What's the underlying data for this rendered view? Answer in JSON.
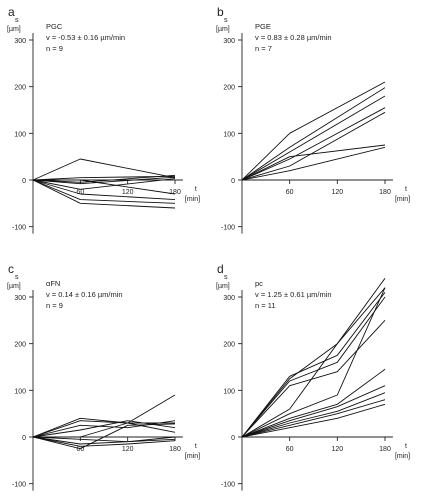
{
  "chart_data": [
    {
      "panel": "a",
      "type": "line",
      "info_lines": [
        "PGC",
        "v = -0.53 ± 0.16 µm/min",
        "n = 9"
      ],
      "ylabel": [
        "s",
        "[µm]"
      ],
      "xlabel": [
        "t",
        "[min]"
      ],
      "xlim": [
        0,
        190
      ],
      "ylim": [
        -115,
        315
      ],
      "xticks": [
        60,
        120,
        180
      ],
      "yticks": [
        -100,
        0,
        100,
        200,
        300
      ],
      "series": [
        {
          "x": [
            0,
            60,
            180
          ],
          "y": [
            0,
            45,
            5
          ]
        },
        {
          "x": [
            0,
            60,
            180
          ],
          "y": [
            0,
            5,
            8
          ]
        },
        {
          "x": [
            0,
            60,
            180
          ],
          "y": [
            0,
            -5,
            10
          ]
        },
        {
          "x": [
            0,
            60,
            180
          ],
          "y": [
            0,
            -8,
            6
          ]
        },
        {
          "x": [
            0,
            60,
            180
          ],
          "y": [
            0,
            -20,
            3
          ]
        },
        {
          "x": [
            0,
            60,
            180
          ],
          "y": [
            0,
            -30,
            -42
          ]
        },
        {
          "x": [
            0,
            60,
            180
          ],
          "y": [
            0,
            -42,
            -50
          ]
        },
        {
          "x": [
            0,
            60,
            180
          ],
          "y": [
            0,
            -50,
            -60
          ]
        },
        {
          "x": [
            0,
            60,
            180
          ],
          "y": [
            0,
            0,
            -30
          ]
        }
      ]
    },
    {
      "panel": "b",
      "type": "line",
      "info_lines": [
        "PGE",
        "v = 0.83 ± 0.28 µm/min",
        "n = 7"
      ],
      "ylabel": [
        "s",
        "[µm]"
      ],
      "xlabel": [
        "t",
        "[min]"
      ],
      "xlim": [
        0,
        190
      ],
      "ylim": [
        -115,
        315
      ],
      "xticks": [
        60,
        120,
        180
      ],
      "yticks": [
        -100,
        0,
        100,
        200,
        300
      ],
      "series": [
        {
          "x": [
            0,
            60,
            180
          ],
          "y": [
            0,
            100,
            210
          ]
        },
        {
          "x": [
            0,
            60,
            180
          ],
          "y": [
            0,
            70,
            198
          ]
        },
        {
          "x": [
            0,
            60,
            180
          ],
          "y": [
            0,
            60,
            180
          ]
        },
        {
          "x": [
            0,
            60,
            180
          ],
          "y": [
            0,
            45,
            155
          ]
        },
        {
          "x": [
            0,
            60,
            180
          ],
          "y": [
            0,
            30,
            145
          ]
        },
        {
          "x": [
            0,
            60,
            180
          ],
          "y": [
            0,
            50,
            75
          ]
        },
        {
          "x": [
            0,
            60,
            180
          ],
          "y": [
            0,
            20,
            70
          ]
        }
      ]
    },
    {
      "panel": "c",
      "type": "line",
      "info_lines": [
        "αFN",
        "v = 0.14 ± 0.16 µm/min",
        "n = 9"
      ],
      "ylabel": [
        "s",
        "[µm]"
      ],
      "xlabel": [
        "t",
        "[min]"
      ],
      "xlim": [
        0,
        190
      ],
      "ylim": [
        -115,
        315
      ],
      "xticks": [
        60,
        120,
        180
      ],
      "yticks": [
        -100,
        0,
        100,
        200,
        300
      ],
      "series": [
        {
          "x": [
            0,
            60,
            120,
            180
          ],
          "y": [
            0,
            40,
            30,
            30
          ]
        },
        {
          "x": [
            0,
            60,
            120,
            180
          ],
          "y": [
            0,
            35,
            30,
            90
          ]
        },
        {
          "x": [
            0,
            60,
            120,
            180
          ],
          "y": [
            0,
            25,
            20,
            35
          ]
        },
        {
          "x": [
            0,
            60,
            120,
            180
          ],
          "y": [
            0,
            15,
            35,
            20
          ]
        },
        {
          "x": [
            0,
            60,
            120,
            180
          ],
          "y": [
            0,
            0,
            30,
            10
          ]
        },
        {
          "x": [
            0,
            60,
            120,
            180
          ],
          "y": [
            0,
            -5,
            -10,
            0
          ]
        },
        {
          "x": [
            0,
            60,
            120,
            180
          ],
          "y": [
            0,
            -15,
            -10,
            -5
          ]
        },
        {
          "x": [
            0,
            60,
            120,
            180
          ],
          "y": [
            0,
            -20,
            -15,
            -8
          ]
        },
        {
          "x": [
            0,
            60,
            120,
            180
          ],
          "y": [
            0,
            -25,
            25,
            28
          ]
        }
      ]
    },
    {
      "panel": "d",
      "type": "line",
      "info_lines": [
        "pc",
        "v = 1.25 ± 0.61 µm/min",
        "n = 11"
      ],
      "ylabel": [
        "s",
        "[µm]"
      ],
      "xlabel": [
        "t",
        "[min]"
      ],
      "xlim": [
        0,
        190
      ],
      "ylim": [
        -115,
        315
      ],
      "xticks": [
        60,
        120,
        180
      ],
      "yticks": [
        -100,
        0,
        100,
        200,
        300
      ],
      "series": [
        {
          "x": [
            0,
            60,
            120,
            180
          ],
          "y": [
            0,
            125,
            200,
            320
          ]
        },
        {
          "x": [
            0,
            60,
            120,
            180
          ],
          "y": [
            0,
            130,
            175,
            310
          ]
        },
        {
          "x": [
            0,
            60,
            120,
            180
          ],
          "y": [
            0,
            120,
            160,
            300
          ]
        },
        {
          "x": [
            0,
            60,
            120,
            180
          ],
          "y": [
            0,
            110,
            140,
            250
          ]
        },
        {
          "x": [
            0,
            60,
            120,
            180
          ],
          "y": [
            0,
            60,
            200,
            340
          ]
        },
        {
          "x": [
            0,
            60,
            120,
            180
          ],
          "y": [
            0,
            50,
            90,
            320
          ]
        },
        {
          "x": [
            0,
            60,
            120,
            180
          ],
          "y": [
            0,
            40,
            70,
            145
          ]
        },
        {
          "x": [
            0,
            60,
            120,
            180
          ],
          "y": [
            0,
            35,
            65,
            110
          ]
        },
        {
          "x": [
            0,
            60,
            120,
            180
          ],
          "y": [
            0,
            30,
            55,
            95
          ]
        },
        {
          "x": [
            0,
            60,
            120,
            180
          ],
          "y": [
            0,
            25,
            50,
            80
          ]
        },
        {
          "x": [
            0,
            60,
            120,
            180
          ],
          "y": [
            0,
            20,
            40,
            70
          ]
        }
      ]
    }
  ]
}
